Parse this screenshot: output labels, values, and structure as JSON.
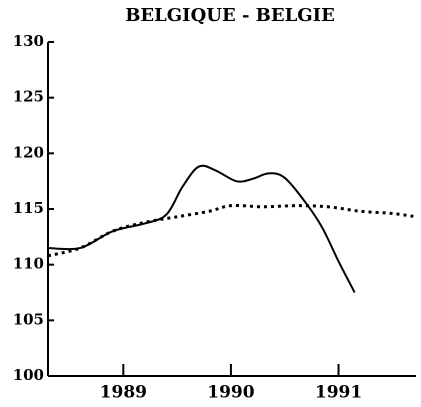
{
  "chart_data": {
    "type": "line",
    "title": "BELGIQUE - BELGIE",
    "xlim": [
      1988.3,
      1991.72
    ],
    "xticks": [
      1989,
      1990,
      1991
    ],
    "ylim": [
      100,
      130
    ],
    "yticks": [
      100,
      105,
      110,
      115,
      120,
      125,
      130
    ],
    "series": [
      {
        "color": "#000000",
        "dash": "solid",
        "x": [
          1988.3,
          1988.6,
          1988.9,
          1989.2,
          1989.4,
          1989.55,
          1989.7,
          1989.85,
          1990.05,
          1990.2,
          1990.35,
          1990.5,
          1990.7,
          1990.85,
          1991.0,
          1991.15
        ],
        "values": [
          111.5,
          111.5,
          113,
          113.7,
          114.5,
          117,
          118.8,
          118.5,
          117.5,
          117.7,
          118.2,
          117.8,
          115.5,
          113.3,
          110.3,
          107.5
        ]
      },
      {
        "color": "#000000",
        "dash": "dotted",
        "x": [
          1988.3,
          1988.6,
          1988.9,
          1989.2,
          1989.5,
          1989.8,
          1990.0,
          1990.3,
          1990.6,
          1990.9,
          1991.2,
          1991.5,
          1991.72
        ],
        "values": [
          110.8,
          111.5,
          113,
          113.8,
          114.3,
          114.8,
          115.3,
          115.2,
          115.3,
          115.2,
          114.8,
          114.6,
          114.3
        ]
      }
    ]
  }
}
